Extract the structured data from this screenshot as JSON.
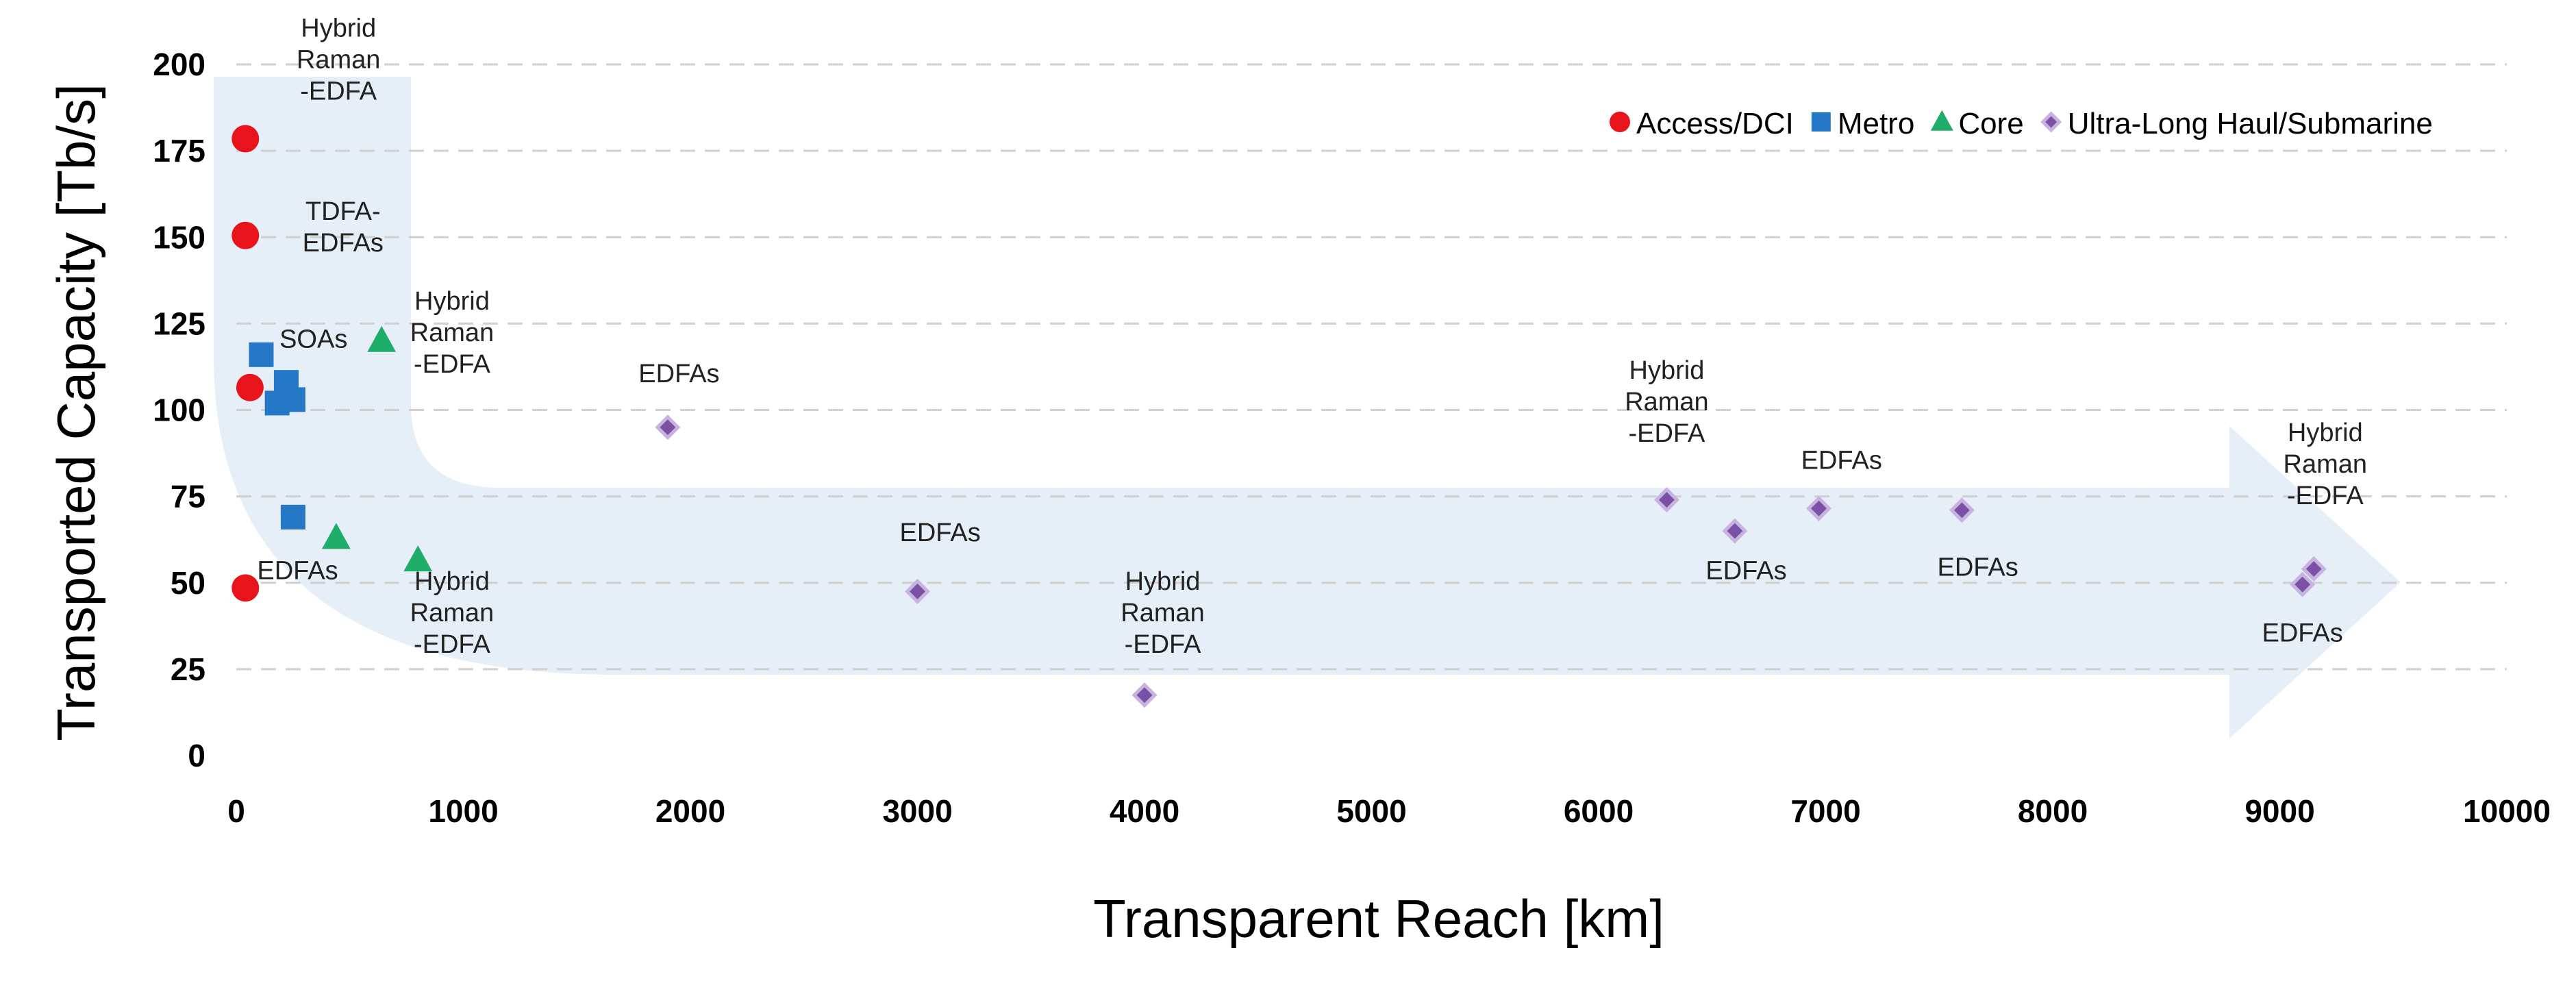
{
  "chart_data": {
    "type": "scatter",
    "xlabel": "Transparent Reach [km]",
    "ylabel": "Transported Capacity [Tb/s]",
    "xlim": [
      0,
      10000
    ],
    "ylim": [
      0,
      200
    ],
    "xticks": [
      "0",
      "1000",
      "2000",
      "3000",
      "4000",
      "5000",
      "6000",
      "7000",
      "8000",
      "9000",
      "10000"
    ],
    "yticks": [
      "0",
      "25",
      "50",
      "75",
      "100",
      "125",
      "150",
      "175",
      "200"
    ],
    "grid": "horizontal dashed",
    "legend_position": "top-right",
    "series": [
      {
        "name": "Access/DCI",
        "marker": "circle",
        "color": "#e8141c",
        "points": [
          {
            "x": 40,
            "y": 178.5
          },
          {
            "x": 40,
            "y": 150.5
          },
          {
            "x": 60,
            "y": 106.5
          },
          {
            "x": 40,
            "y": 48.5
          }
        ]
      },
      {
        "name": "Metro",
        "marker": "square",
        "color": "#2478c6",
        "points": [
          {
            "x": 110,
            "y": 116
          },
          {
            "x": 220,
            "y": 108
          },
          {
            "x": 250,
            "y": 103
          },
          {
            "x": 180,
            "y": 102
          },
          {
            "x": 250,
            "y": 69
          }
        ]
      },
      {
        "name": "Core",
        "marker": "triangle",
        "color": "#1fae6a",
        "points": [
          {
            "x": 640,
            "y": 120
          },
          {
            "x": 440,
            "y": 63
          },
          {
            "x": 800,
            "y": 56.5
          }
        ]
      },
      {
        "name": "Ultra-Long Haul/Submarine",
        "marker": "diamond",
        "color": "#7b51a6",
        "points": [
          {
            "x": 1900,
            "y": 95
          },
          {
            "x": 3000,
            "y": 47.5
          },
          {
            "x": 4000,
            "y": 17.5
          },
          {
            "x": 6300,
            "y": 74
          },
          {
            "x": 6600,
            "y": 65
          },
          {
            "x": 6970,
            "y": 71.5
          },
          {
            "x": 7600,
            "y": 71
          },
          {
            "x": 9150,
            "y": 54
          },
          {
            "x": 9100,
            "y": 49.5
          }
        ]
      }
    ],
    "annotations": [
      {
        "lines": [
          "Hybrid",
          "Raman",
          "-EDFA"
        ],
        "x": 450,
        "y": 208
      },
      {
        "lines": [
          "TDFA-",
          "EDFAs"
        ],
        "x": 470,
        "y": 155
      },
      {
        "lines": [
          "SOAs"
        ],
        "x": 340,
        "y": 118
      },
      {
        "lines": [
          "Hybrid",
          "Raman",
          "-EDFA"
        ],
        "x": 950,
        "y": 129
      },
      {
        "lines": [
          "EDFAs"
        ],
        "x": 270,
        "y": 51
      },
      {
        "lines": [
          "Hybrid",
          "Raman",
          "-EDFA"
        ],
        "x": 950,
        "y": 48
      },
      {
        "lines": [
          "EDFAs"
        ],
        "x": 1950,
        "y": 108
      },
      {
        "lines": [
          "EDFAs"
        ],
        "x": 3100,
        "y": 62
      },
      {
        "lines": [
          "Hybrid",
          "Raman",
          "-EDFA"
        ],
        "x": 4080,
        "y": 48
      },
      {
        "lines": [
          "Hybrid",
          "Raman",
          "-EDFA"
        ],
        "x": 6300,
        "y": 109
      },
      {
        "lines": [
          "EDFAs"
        ],
        "x": 6650,
        "y": 51
      },
      {
        "lines": [
          "EDFAs"
        ],
        "x": 7070,
        "y": 83
      },
      {
        "lines": [
          "EDFAs"
        ],
        "x": 7670,
        "y": 52
      },
      {
        "lines": [
          "Hybrid",
          "Raman",
          "-EDFA"
        ],
        "x": 9200,
        "y": 91
      },
      {
        "lines": [
          "EDFAs"
        ],
        "x": 9100,
        "y": 33
      }
    ]
  }
}
